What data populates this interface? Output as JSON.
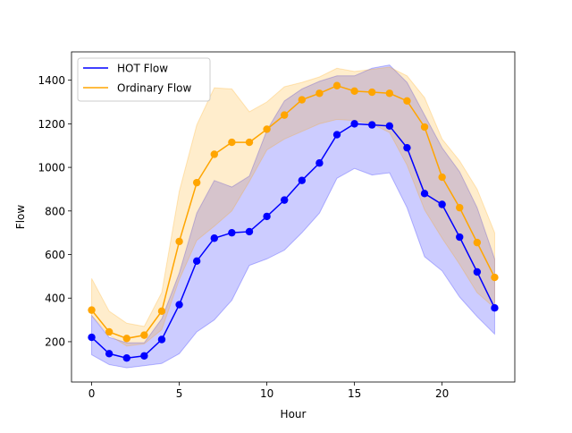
{
  "chart_data": {
    "type": "line",
    "title": "",
    "xlabel": "Hour",
    "ylabel": "Flow",
    "xlim": [
      -1.15,
      24.15
    ],
    "ylim": [
      15,
      1530
    ],
    "xticks": [
      0,
      5,
      10,
      15,
      20
    ],
    "yticks": [
      200,
      400,
      600,
      800,
      1000,
      1200,
      1400
    ],
    "grid": false,
    "legend": "top-left",
    "x": [
      0,
      1,
      2,
      3,
      4,
      5,
      6,
      7,
      8,
      9,
      10,
      11,
      12,
      13,
      14,
      15,
      16,
      17,
      18,
      19,
      20,
      21,
      22,
      23
    ],
    "series": [
      {
        "name": "HOT Flow",
        "color": "#0000ff",
        "band_color": "#0000ff",
        "values": [
          220,
          145,
          125,
          135,
          210,
          370,
          570,
          675,
          700,
          705,
          775,
          850,
          940,
          1020,
          1150,
          1200,
          1195,
          1190,
          1090,
          880,
          830,
          680,
          520,
          355
        ],
        "lower": [
          140,
          95,
          80,
          90,
          100,
          145,
          245,
          300,
          390,
          550,
          580,
          620,
          700,
          790,
          950,
          995,
          965,
          975,
          815,
          590,
          525,
          405,
          315,
          235
        ],
        "upper": [
          320,
          220,
          195,
          195,
          305,
          515,
          790,
          940,
          910,
          960,
          1170,
          1305,
          1360,
          1395,
          1420,
          1420,
          1455,
          1470,
          1390,
          1240,
          1090,
          980,
          815,
          580
        ]
      },
      {
        "name": "Ordinary Flow",
        "color": "#ffa500",
        "band_color": "#ffa500",
        "values": [
          345,
          245,
          215,
          230,
          340,
          660,
          930,
          1060,
          1115,
          1115,
          1175,
          1240,
          1310,
          1340,
          1375,
          1350,
          1345,
          1340,
          1305,
          1185,
          955,
          815,
          655,
          495
        ],
        "lower": [
          320,
          230,
          180,
          190,
          255,
          485,
          665,
          730,
          800,
          935,
          1080,
          1130,
          1165,
          1200,
          1220,
          1215,
          1200,
          1160,
          1010,
          805,
          675,
          555,
          425,
          355
        ],
        "upper": [
          490,
          340,
          285,
          270,
          425,
          890,
          1195,
          1365,
          1360,
          1255,
          1300,
          1370,
          1390,
          1415,
          1455,
          1440,
          1450,
          1460,
          1420,
          1320,
          1130,
          1030,
          900,
          700
        ]
      }
    ]
  }
}
